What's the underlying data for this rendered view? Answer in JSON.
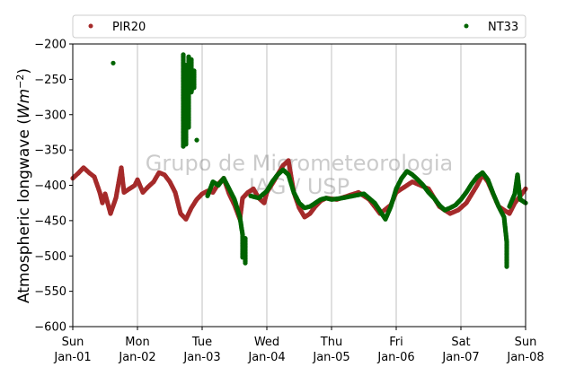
{
  "chart_data": {
    "type": "scatter",
    "ylabel": "Atmospheric longwave ($Wm^{-2}$)",
    "ylabel_text": "Atmospheric longwave (",
    "ylabel_unit": "Wm",
    "ylabel_exp": "−2",
    "ylabel_close": ")",
    "ylim": [
      -600,
      -200
    ],
    "yticks": [
      -200,
      -250,
      -300,
      -350,
      -400,
      -450,
      -500,
      -550,
      -600
    ],
    "xlim": [
      "2018-01-01",
      "2018-01-08"
    ],
    "xticks": [
      {
        "day": "Sun",
        "date": "Jan-01"
      },
      {
        "day": "Mon",
        "date": "Jan-02"
      },
      {
        "day": "Tue",
        "date": "Jan-03"
      },
      {
        "day": "Wed",
        "date": "Jan-04"
      },
      {
        "day": "Thu",
        "date": "Jan-05"
      },
      {
        "day": "Fri",
        "date": "Jan-06"
      },
      {
        "day": "Sat",
        "date": "Jan-07"
      },
      {
        "day": "Sun",
        "date": "Jan-08"
      }
    ],
    "grid": "vertical",
    "legend_placement": "top, outside plot",
    "watermark": [
      "Grupo de Micrometeorologia",
      "IAG / USP"
    ],
    "series": [
      {
        "name": "PIR20",
        "color": "#a52a2a",
        "points": [
          [
            "2018-01-01 00:00",
            -390
          ],
          [
            "2018-01-01 02:00",
            -383
          ],
          [
            "2018-01-01 04:00",
            -375
          ],
          [
            "2018-01-01 06:00",
            -382
          ],
          [
            "2018-01-01 08:00",
            -388
          ],
          [
            "2018-01-01 10:00",
            -410
          ],
          [
            "2018-01-01 11:00",
            -425
          ],
          [
            "2018-01-01 12:00",
            -412
          ],
          [
            "2018-01-01 14:00",
            -440
          ],
          [
            "2018-01-01 16:00",
            -418
          ],
          [
            "2018-01-01 18:00",
            -375
          ],
          [
            "2018-01-01 19:00",
            -410
          ],
          [
            "2018-01-01 21:00",
            -405
          ],
          [
            "2018-01-01 23:00",
            -400
          ],
          [
            "2018-01-02 00:00",
            -392
          ],
          [
            "2018-01-02 02:00",
            -410
          ],
          [
            "2018-01-02 04:00",
            -402
          ],
          [
            "2018-01-02 06:00",
            -395
          ],
          [
            "2018-01-02 08:00",
            -382
          ],
          [
            "2018-01-02 10:00",
            -385
          ],
          [
            "2018-01-02 12:00",
            -395
          ],
          [
            "2018-01-02 14:00",
            -410
          ],
          [
            "2018-01-02 16:00",
            -440
          ],
          [
            "2018-01-02 18:00",
            -448
          ],
          [
            "2018-01-02 20:00",
            -432
          ],
          [
            "2018-01-02 22:00",
            -420
          ],
          [
            "2018-01-03 00:00",
            -412
          ],
          [
            "2018-01-03 02:00",
            -408
          ],
          [
            "2018-01-03 04:00",
            -410
          ],
          [
            "2018-01-03 06:00",
            -398
          ],
          [
            "2018-01-03 08:00",
            -390
          ],
          [
            "2018-01-03 10:00",
            -412
          ],
          [
            "2018-01-03 12:00",
            -428
          ],
          [
            "2018-01-03 14:00",
            -448
          ],
          [
            "2018-01-03 15:00",
            -418
          ],
          [
            "2018-01-03 17:00",
            -410
          ],
          [
            "2018-01-03 19:00",
            -405
          ],
          [
            "2018-01-03 21:00",
            -418
          ],
          [
            "2018-01-03 23:00",
            -425
          ],
          [
            "2018-01-04 00:00",
            -410
          ],
          [
            "2018-01-04 02:00",
            -398
          ],
          [
            "2018-01-04 04:00",
            -385
          ],
          [
            "2018-01-04 06:00",
            -372
          ],
          [
            "2018-01-04 08:00",
            -365
          ],
          [
            "2018-01-04 10:00",
            -410
          ],
          [
            "2018-01-04 12:00",
            -432
          ],
          [
            "2018-01-04 14:00",
            -445
          ],
          [
            "2018-01-04 16:00",
            -440
          ],
          [
            "2018-01-04 18:00",
            -430
          ],
          [
            "2018-01-04 20:00",
            -422
          ],
          [
            "2018-01-04 22:00",
            -418
          ],
          [
            "2018-01-05 02:00",
            -420
          ],
          [
            "2018-01-05 06:00",
            -415
          ],
          [
            "2018-01-05 10:00",
            -410
          ],
          [
            "2018-01-05 14:00",
            -420
          ],
          [
            "2018-01-05 18:00",
            -440
          ],
          [
            "2018-01-05 22:00",
            -428
          ],
          [
            "2018-01-06 00:00",
            -410
          ],
          [
            "2018-01-06 06:00",
            -395
          ],
          [
            "2018-01-06 12:00",
            -405
          ],
          [
            "2018-01-06 16:00",
            -430
          ],
          [
            "2018-01-06 20:00",
            -440
          ],
          [
            "2018-01-06 23:00",
            -435
          ],
          [
            "2018-01-07 02:00",
            -425
          ],
          [
            "2018-01-07 06:00",
            -400
          ],
          [
            "2018-01-07 08:00",
            -385
          ],
          [
            "2018-01-07 10:00",
            -395
          ],
          [
            "2018-01-07 14:00",
            -430
          ],
          [
            "2018-01-07 18:00",
            -440
          ],
          [
            "2018-01-07 20:00",
            -425
          ],
          [
            "2018-01-07 22:00",
            -415
          ],
          [
            "2018-01-08 00:00",
            -405
          ]
        ]
      },
      {
        "name": "NT33",
        "color": "#006400",
        "points": [
          [
            "2018-01-01 15:00",
            -227
          ],
          [
            "2018-01-02 17:00",
            -215
          ],
          [
            "2018-01-02 17:00",
            -240
          ],
          [
            "2018-01-02 17:00",
            -262
          ],
          [
            "2018-01-02 17:00",
            -290
          ],
          [
            "2018-01-02 17:00",
            -318
          ],
          [
            "2018-01-02 17:00",
            -345
          ],
          [
            "2018-01-02 18:00",
            -230
          ],
          [
            "2018-01-02 18:00",
            -252
          ],
          [
            "2018-01-02 18:00",
            -278
          ],
          [
            "2018-01-02 18:00",
            -300
          ],
          [
            "2018-01-02 18:00",
            -322
          ],
          [
            "2018-01-02 18:00",
            -342
          ],
          [
            "2018-01-02 19:00",
            -218
          ],
          [
            "2018-01-02 19:00",
            -236
          ],
          [
            "2018-01-02 19:00",
            -265
          ],
          [
            "2018-01-02 19:00",
            -285
          ],
          [
            "2018-01-02 19:00",
            -305
          ],
          [
            "2018-01-02 19:00",
            -318
          ],
          [
            "2018-01-02 20:00",
            -222
          ],
          [
            "2018-01-02 20:00",
            -245
          ],
          [
            "2018-01-02 20:00",
            -268
          ],
          [
            "2018-01-02 21:00",
            -238
          ],
          [
            "2018-01-02 21:00",
            -250
          ],
          [
            "2018-01-02 21:00",
            -262
          ],
          [
            "2018-01-02 22:00",
            -336
          ],
          [
            "2018-01-03 02:00",
            -415
          ],
          [
            "2018-01-03 04:00",
            -395
          ],
          [
            "2018-01-03 06:00",
            -400
          ],
          [
            "2018-01-03 08:00",
            -390
          ],
          [
            "2018-01-03 10:00",
            -405
          ],
          [
            "2018-01-03 12:00",
            -420
          ],
          [
            "2018-01-03 14:00",
            -445
          ],
          [
            "2018-01-03 15:00",
            -470
          ],
          [
            "2018-01-03 15:00",
            -490
          ],
          [
            "2018-01-03 15:00",
            -502
          ],
          [
            "2018-01-03 16:00",
            -475
          ],
          [
            "2018-01-03 16:00",
            -495
          ],
          [
            "2018-01-03 16:00",
            -510
          ],
          [
            "2018-01-03 18:00",
            -415
          ],
          [
            "2018-01-03 21:00",
            -418
          ],
          [
            "2018-01-04 00:00",
            -408
          ],
          [
            "2018-01-04 02:00",
            -395
          ],
          [
            "2018-01-04 04:00",
            -385
          ],
          [
            "2018-01-04 06:00",
            -378
          ],
          [
            "2018-01-04 08:00",
            -385
          ],
          [
            "2018-01-04 10:00",
            -410
          ],
          [
            "2018-01-04 12:00",
            -425
          ],
          [
            "2018-01-04 14:00",
            -432
          ],
          [
            "2018-01-04 16:00",
            -430
          ],
          [
            "2018-01-04 18:00",
            -425
          ],
          [
            "2018-01-04 20:00",
            -420
          ],
          [
            "2018-01-04 22:00",
            -418
          ],
          [
            "2018-01-05 00:00",
            -420
          ],
          [
            "2018-01-05 04:00",
            -418
          ],
          [
            "2018-01-05 08:00",
            -415
          ],
          [
            "2018-01-05 12:00",
            -412
          ],
          [
            "2018-01-05 16:00",
            -425
          ],
          [
            "2018-01-05 20:00",
            -448
          ],
          [
            "2018-01-05 22:00",
            -430
          ],
          [
            "2018-01-06 00:00",
            -405
          ],
          [
            "2018-01-06 02:00",
            -390
          ],
          [
            "2018-01-06 04:00",
            -380
          ],
          [
            "2018-01-06 06:00",
            -385
          ],
          [
            "2018-01-06 08:00",
            -392
          ],
          [
            "2018-01-06 10:00",
            -400
          ],
          [
            "2018-01-06 12:00",
            -410
          ],
          [
            "2018-01-06 14:00",
            -418
          ],
          [
            "2018-01-06 16:00",
            -428
          ],
          [
            "2018-01-06 18:00",
            -435
          ],
          [
            "2018-01-06 20:00",
            -432
          ],
          [
            "2018-01-06 22:00",
            -428
          ],
          [
            "2018-01-07 00:00",
            -420
          ],
          [
            "2018-01-07 02:00",
            -410
          ],
          [
            "2018-01-07 04:00",
            -398
          ],
          [
            "2018-01-07 06:00",
            -388
          ],
          [
            "2018-01-07 08:00",
            -382
          ],
          [
            "2018-01-07 10:00",
            -392
          ],
          [
            "2018-01-07 12:00",
            -412
          ],
          [
            "2018-01-07 14:00",
            -430
          ],
          [
            "2018-01-07 16:00",
            -445
          ],
          [
            "2018-01-07 17:00",
            -480
          ],
          [
            "2018-01-07 17:00",
            -505
          ],
          [
            "2018-01-07 17:00",
            -515
          ],
          [
            "2018-01-07 18:00",
            -430
          ],
          [
            "2018-01-07 20:00",
            -412
          ],
          [
            "2018-01-07 21:00",
            -385
          ],
          [
            "2018-01-07 22:00",
            -420
          ],
          [
            "2018-01-08 00:00",
            -425
          ]
        ]
      }
    ]
  }
}
